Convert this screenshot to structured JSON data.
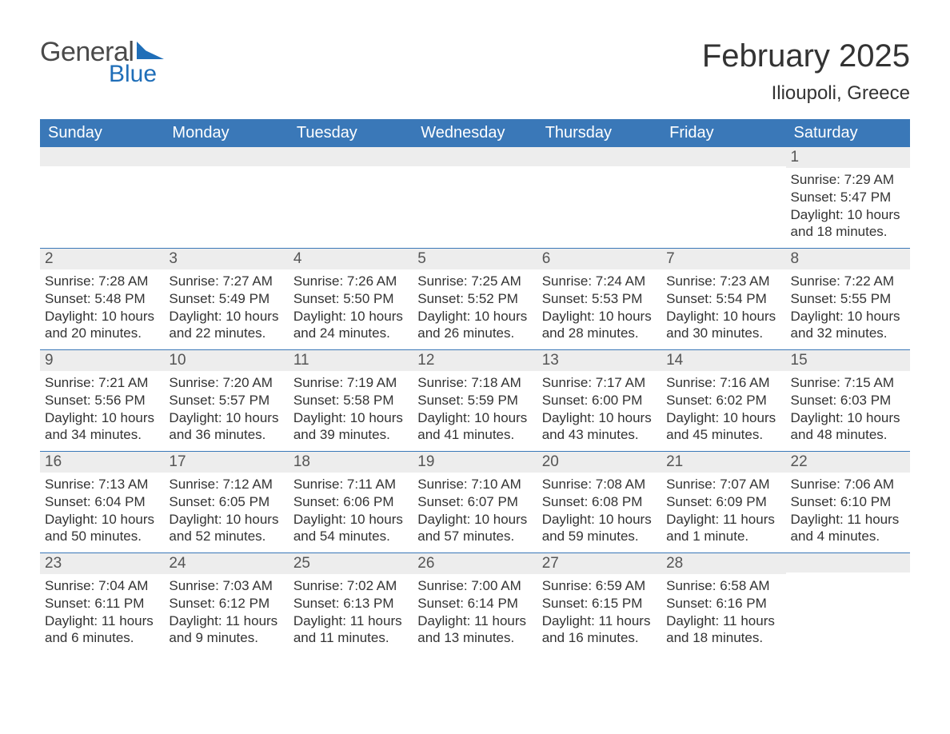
{
  "logo": {
    "text_general": "General",
    "text_blue": "Blue",
    "flag_color": "#1f6eb8",
    "text_general_color": "#4a4a4a"
  },
  "header": {
    "month_title": "February 2025",
    "location": "Ilioupoli, Greece"
  },
  "colors": {
    "header_bg": "#3a78b8",
    "header_text": "#ffffff",
    "daynum_bg": "#ededed",
    "week_border": "#3a78b8",
    "body_text": "#333333",
    "page_bg": "#ffffff"
  },
  "calendar": {
    "day_headers": [
      "Sunday",
      "Monday",
      "Tuesday",
      "Wednesday",
      "Thursday",
      "Friday",
      "Saturday"
    ],
    "weeks": [
      [
        {
          "day": "",
          "sunrise": "",
          "sunset": "",
          "daylight": ""
        },
        {
          "day": "",
          "sunrise": "",
          "sunset": "",
          "daylight": ""
        },
        {
          "day": "",
          "sunrise": "",
          "sunset": "",
          "daylight": ""
        },
        {
          "day": "",
          "sunrise": "",
          "sunset": "",
          "daylight": ""
        },
        {
          "day": "",
          "sunrise": "",
          "sunset": "",
          "daylight": ""
        },
        {
          "day": "",
          "sunrise": "",
          "sunset": "",
          "daylight": ""
        },
        {
          "day": "1",
          "sunrise": "Sunrise: 7:29 AM",
          "sunset": "Sunset: 5:47 PM",
          "daylight": "Daylight: 10 hours and 18 minutes."
        }
      ],
      [
        {
          "day": "2",
          "sunrise": "Sunrise: 7:28 AM",
          "sunset": "Sunset: 5:48 PM",
          "daylight": "Daylight: 10 hours and 20 minutes."
        },
        {
          "day": "3",
          "sunrise": "Sunrise: 7:27 AM",
          "sunset": "Sunset: 5:49 PM",
          "daylight": "Daylight: 10 hours and 22 minutes."
        },
        {
          "day": "4",
          "sunrise": "Sunrise: 7:26 AM",
          "sunset": "Sunset: 5:50 PM",
          "daylight": "Daylight: 10 hours and 24 minutes."
        },
        {
          "day": "5",
          "sunrise": "Sunrise: 7:25 AM",
          "sunset": "Sunset: 5:52 PM",
          "daylight": "Daylight: 10 hours and 26 minutes."
        },
        {
          "day": "6",
          "sunrise": "Sunrise: 7:24 AM",
          "sunset": "Sunset: 5:53 PM",
          "daylight": "Daylight: 10 hours and 28 minutes."
        },
        {
          "day": "7",
          "sunrise": "Sunrise: 7:23 AM",
          "sunset": "Sunset: 5:54 PM",
          "daylight": "Daylight: 10 hours and 30 minutes."
        },
        {
          "day": "8",
          "sunrise": "Sunrise: 7:22 AM",
          "sunset": "Sunset: 5:55 PM",
          "daylight": "Daylight: 10 hours and 32 minutes."
        }
      ],
      [
        {
          "day": "9",
          "sunrise": "Sunrise: 7:21 AM",
          "sunset": "Sunset: 5:56 PM",
          "daylight": "Daylight: 10 hours and 34 minutes."
        },
        {
          "day": "10",
          "sunrise": "Sunrise: 7:20 AM",
          "sunset": "Sunset: 5:57 PM",
          "daylight": "Daylight: 10 hours and 36 minutes."
        },
        {
          "day": "11",
          "sunrise": "Sunrise: 7:19 AM",
          "sunset": "Sunset: 5:58 PM",
          "daylight": "Daylight: 10 hours and 39 minutes."
        },
        {
          "day": "12",
          "sunrise": "Sunrise: 7:18 AM",
          "sunset": "Sunset: 5:59 PM",
          "daylight": "Daylight: 10 hours and 41 minutes."
        },
        {
          "day": "13",
          "sunrise": "Sunrise: 7:17 AM",
          "sunset": "Sunset: 6:00 PM",
          "daylight": "Daylight: 10 hours and 43 minutes."
        },
        {
          "day": "14",
          "sunrise": "Sunrise: 7:16 AM",
          "sunset": "Sunset: 6:02 PM",
          "daylight": "Daylight: 10 hours and 45 minutes."
        },
        {
          "day": "15",
          "sunrise": "Sunrise: 7:15 AM",
          "sunset": "Sunset: 6:03 PM",
          "daylight": "Daylight: 10 hours and 48 minutes."
        }
      ],
      [
        {
          "day": "16",
          "sunrise": "Sunrise: 7:13 AM",
          "sunset": "Sunset: 6:04 PM",
          "daylight": "Daylight: 10 hours and 50 minutes."
        },
        {
          "day": "17",
          "sunrise": "Sunrise: 7:12 AM",
          "sunset": "Sunset: 6:05 PM",
          "daylight": "Daylight: 10 hours and 52 minutes."
        },
        {
          "day": "18",
          "sunrise": "Sunrise: 7:11 AM",
          "sunset": "Sunset: 6:06 PM",
          "daylight": "Daylight: 10 hours and 54 minutes."
        },
        {
          "day": "19",
          "sunrise": "Sunrise: 7:10 AM",
          "sunset": "Sunset: 6:07 PM",
          "daylight": "Daylight: 10 hours and 57 minutes."
        },
        {
          "day": "20",
          "sunrise": "Sunrise: 7:08 AM",
          "sunset": "Sunset: 6:08 PM",
          "daylight": "Daylight: 10 hours and 59 minutes."
        },
        {
          "day": "21",
          "sunrise": "Sunrise: 7:07 AM",
          "sunset": "Sunset: 6:09 PM",
          "daylight": "Daylight: 11 hours and 1 minute."
        },
        {
          "day": "22",
          "sunrise": "Sunrise: 7:06 AM",
          "sunset": "Sunset: 6:10 PM",
          "daylight": "Daylight: 11 hours and 4 minutes."
        }
      ],
      [
        {
          "day": "23",
          "sunrise": "Sunrise: 7:04 AM",
          "sunset": "Sunset: 6:11 PM",
          "daylight": "Daylight: 11 hours and 6 minutes."
        },
        {
          "day": "24",
          "sunrise": "Sunrise: 7:03 AM",
          "sunset": "Sunset: 6:12 PM",
          "daylight": "Daylight: 11 hours and 9 minutes."
        },
        {
          "day": "25",
          "sunrise": "Sunrise: 7:02 AM",
          "sunset": "Sunset: 6:13 PM",
          "daylight": "Daylight: 11 hours and 11 minutes."
        },
        {
          "day": "26",
          "sunrise": "Sunrise: 7:00 AM",
          "sunset": "Sunset: 6:14 PM",
          "daylight": "Daylight: 11 hours and 13 minutes."
        },
        {
          "day": "27",
          "sunrise": "Sunrise: 6:59 AM",
          "sunset": "Sunset: 6:15 PM",
          "daylight": "Daylight: 11 hours and 16 minutes."
        },
        {
          "day": "28",
          "sunrise": "Sunrise: 6:58 AM",
          "sunset": "Sunset: 6:16 PM",
          "daylight": "Daylight: 11 hours and 18 minutes."
        },
        {
          "day": "",
          "sunrise": "",
          "sunset": "",
          "daylight": ""
        }
      ]
    ]
  }
}
